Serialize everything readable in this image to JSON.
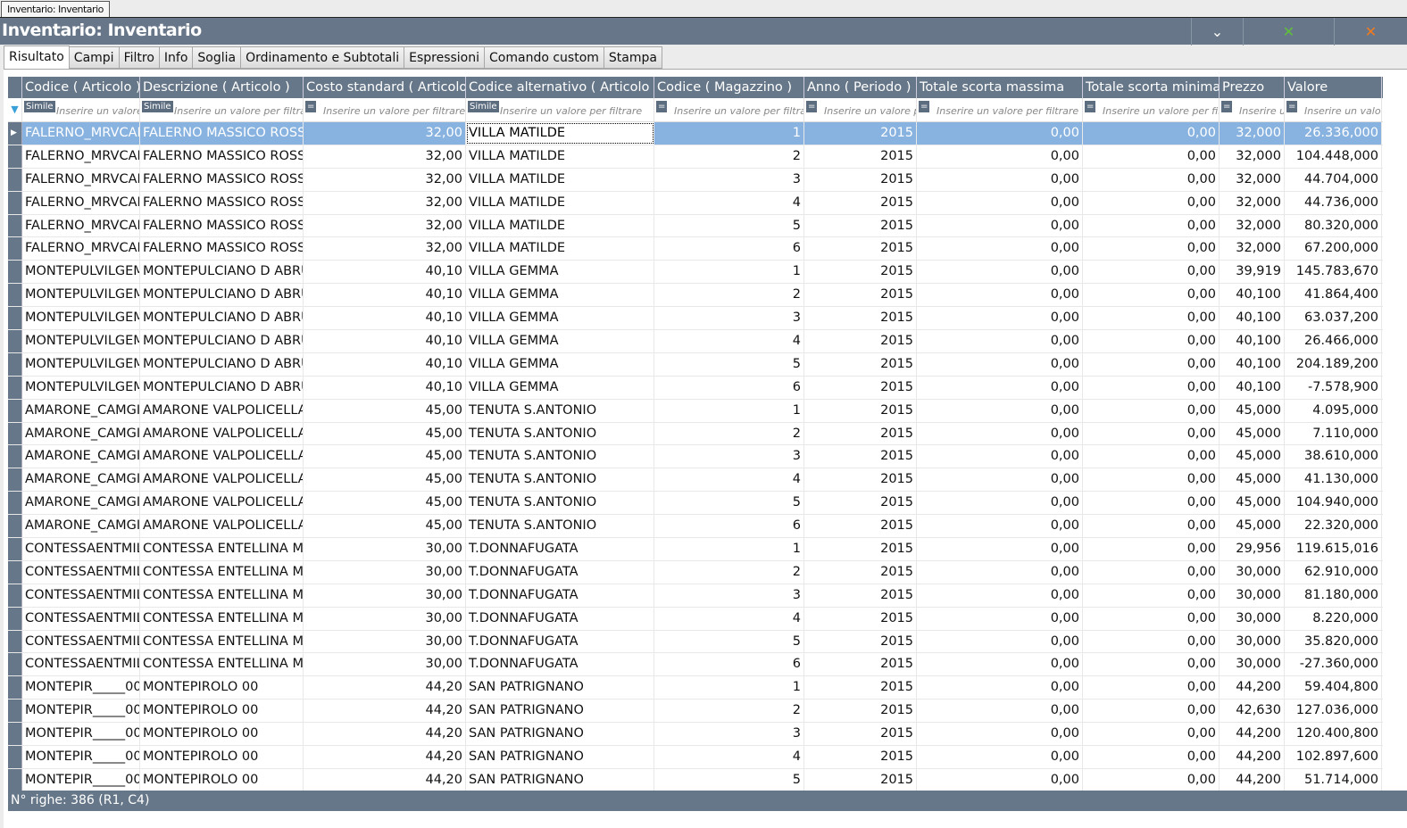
{
  "doc_tab": "Inventario: Inventario",
  "title": "Inventario: Inventario",
  "toolbar": {
    "dropdown_icon": "chevron-down-icon",
    "export_icon": "excel-export-icon",
    "close_icon": "close-icon"
  },
  "tabs": [
    "Risultato",
    "Campi",
    "Filtro",
    "Info",
    "Soglia",
    "Ordinamento e Subtotali",
    "Espressioni",
    "Comando custom",
    "Stampa"
  ],
  "active_tab": "Risultato",
  "columns": [
    "Codice ( Articolo )",
    "Descrizione ( Articolo )",
    "Costo standard ( Articolo )",
    "Codice alternativo ( Articolo )",
    "Codice ( Magazzino )",
    "Anno ( Periodo )",
    "Totale scorta massima",
    "Totale scorta minima",
    "Prezzo",
    "Valore"
  ],
  "filter_ops": [
    "Simile",
    "Simile",
    "=",
    "Simile",
    "=",
    "=",
    "=",
    "=",
    "=",
    "="
  ],
  "filter_placeholder": "Inserire un valore per filtrare",
  "rows": [
    [
      "FALERNO_MRVCAM",
      "FALERNO MASSICO ROSSO",
      "32,00",
      "VILLA MATILDE",
      "1",
      "2015",
      "0,00",
      "0,00",
      "32,000",
      "26.336,000"
    ],
    [
      "FALERNO_MRVCAM",
      "FALERNO MASSICO ROSSO",
      "32,00",
      "VILLA MATILDE",
      "2",
      "2015",
      "0,00",
      "0,00",
      "32,000",
      "104.448,000"
    ],
    [
      "FALERNO_MRVCAM",
      "FALERNO MASSICO ROSSO",
      "32,00",
      "VILLA MATILDE",
      "3",
      "2015",
      "0,00",
      "0,00",
      "32,000",
      "44.704,000"
    ],
    [
      "FALERNO_MRVCAM",
      "FALERNO MASSICO ROSSO",
      "32,00",
      "VILLA MATILDE",
      "4",
      "2015",
      "0,00",
      "0,00",
      "32,000",
      "44.736,000"
    ],
    [
      "FALERNO_MRVCAM",
      "FALERNO MASSICO ROSSO",
      "32,00",
      "VILLA MATILDE",
      "5",
      "2015",
      "0,00",
      "0,00",
      "32,000",
      "80.320,000"
    ],
    [
      "FALERNO_MRVCAM",
      "FALERNO MASSICO ROSSO",
      "32,00",
      "VILLA MATILDE",
      "6",
      "2015",
      "0,00",
      "0,00",
      "32,000",
      "67.200,000"
    ],
    [
      "MONTEPULVILGEM",
      "MONTEPULCIANO D ABRU",
      "40,10",
      "VILLA GEMMA",
      "1",
      "2015",
      "0,00",
      "0,00",
      "39,919",
      "145.783,670"
    ],
    [
      "MONTEPULVILGEM",
      "MONTEPULCIANO D ABRU",
      "40,10",
      "VILLA GEMMA",
      "2",
      "2015",
      "0,00",
      "0,00",
      "40,100",
      "41.864,400"
    ],
    [
      "MONTEPULVILGEM",
      "MONTEPULCIANO D ABRU",
      "40,10",
      "VILLA GEMMA",
      "3",
      "2015",
      "0,00",
      "0,00",
      "40,100",
      "63.037,200"
    ],
    [
      "MONTEPULVILGEM",
      "MONTEPULCIANO D ABRU",
      "40,10",
      "VILLA GEMMA",
      "4",
      "2015",
      "0,00",
      "0,00",
      "40,100",
      "26.466,000"
    ],
    [
      "MONTEPULVILGEM",
      "MONTEPULCIANO D ABRU",
      "40,10",
      "VILLA GEMMA",
      "5",
      "2015",
      "0,00",
      "0,00",
      "40,100",
      "204.189,200"
    ],
    [
      "MONTEPULVILGEM",
      "MONTEPULCIANO D ABRU",
      "40,10",
      "VILLA GEMMA",
      "6",
      "2015",
      "0,00",
      "0,00",
      "40,100",
      "-7.578,900"
    ],
    [
      "AMARONE_CAMGI",
      "AMARONE VALPOLICELLA",
      "45,00",
      "TENUTA S.ANTONIO",
      "1",
      "2015",
      "0,00",
      "0,00",
      "45,000",
      "4.095,000"
    ],
    [
      "AMARONE_CAMGI",
      "AMARONE VALPOLICELLA",
      "45,00",
      "TENUTA S.ANTONIO",
      "2",
      "2015",
      "0,00",
      "0,00",
      "45,000",
      "7.110,000"
    ],
    [
      "AMARONE_CAMGI",
      "AMARONE VALPOLICELLA",
      "45,00",
      "TENUTA S.ANTONIO",
      "3",
      "2015",
      "0,00",
      "0,00",
      "45,000",
      "38.610,000"
    ],
    [
      "AMARONE_CAMGI",
      "AMARONE VALPOLICELLA",
      "45,00",
      "TENUTA S.ANTONIO",
      "4",
      "2015",
      "0,00",
      "0,00",
      "45,000",
      "41.130,000"
    ],
    [
      "AMARONE_CAMGI",
      "AMARONE VALPOLICELLA",
      "45,00",
      "TENUTA S.ANTONIO",
      "5",
      "2015",
      "0,00",
      "0,00",
      "45,000",
      "104.940,000"
    ],
    [
      "AMARONE_CAMGI",
      "AMARONE VALPOLICELLA",
      "45,00",
      "TENUTA S.ANTONIO",
      "6",
      "2015",
      "0,00",
      "0,00",
      "45,000",
      "22.320,000"
    ],
    [
      "CONTESSAENTMIL",
      "CONTESSA ENTELLINA MIL",
      "30,00",
      "T.DONNAFUGATA",
      "1",
      "2015",
      "0,00",
      "0,00",
      "29,956",
      "119.615,016"
    ],
    [
      "CONTESSAENTMIL",
      "CONTESSA ENTELLINA MIL",
      "30,00",
      "T.DONNAFUGATA",
      "2",
      "2015",
      "0,00",
      "0,00",
      "30,000",
      "62.910,000"
    ],
    [
      "CONTESSAENTMIL",
      "CONTESSA ENTELLINA MIL",
      "30,00",
      "T.DONNAFUGATA",
      "3",
      "2015",
      "0,00",
      "0,00",
      "30,000",
      "81.180,000"
    ],
    [
      "CONTESSAENTMIL",
      "CONTESSA ENTELLINA MIL",
      "30,00",
      "T.DONNAFUGATA",
      "4",
      "2015",
      "0,00",
      "0,00",
      "30,000",
      "8.220,000"
    ],
    [
      "CONTESSAENTMIL",
      "CONTESSA ENTELLINA MIL",
      "30,00",
      "T.DONNAFUGATA",
      "5",
      "2015",
      "0,00",
      "0,00",
      "30,000",
      "35.820,000"
    ],
    [
      "CONTESSAENTMIL",
      "CONTESSA ENTELLINA MIL",
      "30,00",
      "T.DONNAFUGATA",
      "6",
      "2015",
      "0,00",
      "0,00",
      "30,000",
      "-27.360,000"
    ],
    [
      "MONTEPIR_____00",
      "MONTEPIROLO 00",
      "44,20",
      "SAN PATRIGNANO",
      "1",
      "2015",
      "0,00",
      "0,00",
      "44,200",
      "59.404,800"
    ],
    [
      "MONTEPIR_____00",
      "MONTEPIROLO 00",
      "44,20",
      "SAN PATRIGNANO",
      "2",
      "2015",
      "0,00",
      "0,00",
      "42,630",
      "127.036,000"
    ],
    [
      "MONTEPIR_____00",
      "MONTEPIROLO 00",
      "44,20",
      "SAN PATRIGNANO",
      "3",
      "2015",
      "0,00",
      "0,00",
      "44,200",
      "120.400,800"
    ],
    [
      "MONTEPIR_____00",
      "MONTEPIROLO 00",
      "44,20",
      "SAN PATRIGNANO",
      "4",
      "2015",
      "0,00",
      "0,00",
      "44,200",
      "102.897,600"
    ],
    [
      "MONTEPIR_____00",
      "MONTEPIROLO 00",
      "44,20",
      "SAN PATRIGNANO",
      "5",
      "2015",
      "0,00",
      "0,00",
      "44,200",
      "51.714,000"
    ]
  ],
  "status": "N° righe: 386  (R1, C4)",
  "colors": {
    "header": "#667789",
    "selection": "#88b2df"
  }
}
